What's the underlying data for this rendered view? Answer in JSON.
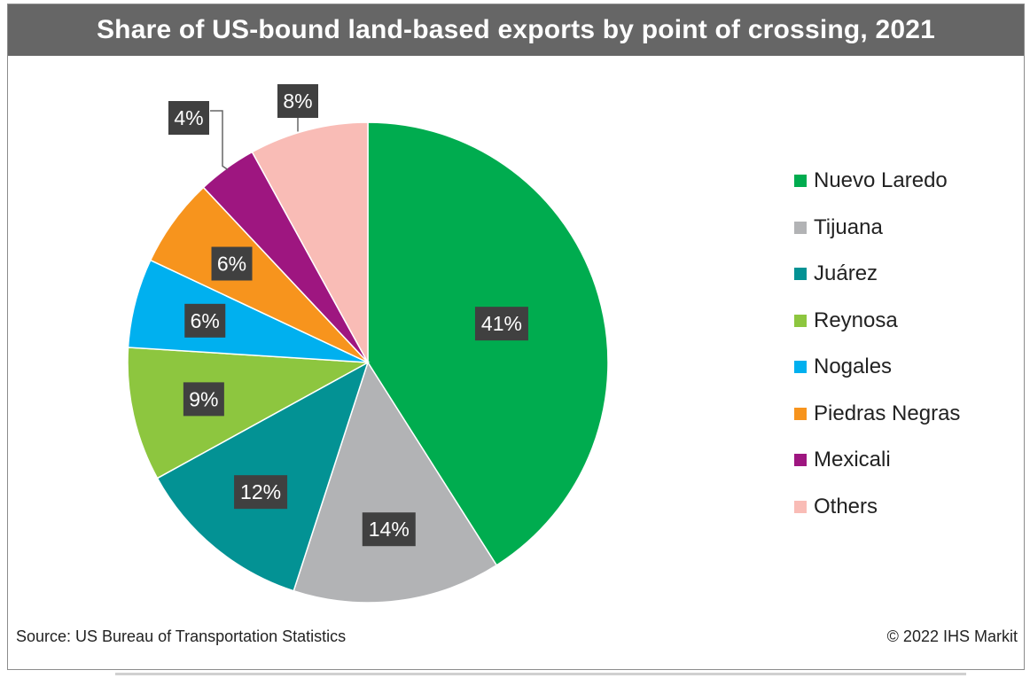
{
  "title": "Share of US-bound land-based exports by point of crossing, 2021",
  "source": "Source: US Bureau of Transportation Statistics",
  "copyright": "© 2022 IHS Markit",
  "chart_data": {
    "type": "pie",
    "title": "Share of US-bound land-based exports by point of crossing, 2021",
    "unit": "%",
    "legend_position": "right",
    "slices": [
      {
        "name": "Nuevo Laredo",
        "value": 41,
        "label": "41%",
        "color": "#00ac4f"
      },
      {
        "name": "Tijuana",
        "value": 14,
        "label": "14%",
        "color": "#b2b3b5"
      },
      {
        "name": "Juárez",
        "value": 12,
        "label": "12%",
        "color": "#039294"
      },
      {
        "name": "Reynosa",
        "value": 9,
        "label": "9%",
        "color": "#8dc63f"
      },
      {
        "name": "Nogales",
        "value": 6,
        "label": "6%",
        "color": "#00b0ef"
      },
      {
        "name": "Piedras Negras",
        "value": 6,
        "label": "6%",
        "color": "#f7941d"
      },
      {
        "name": "Mexicali",
        "value": 4,
        "label": "4%",
        "color": "#9e1680"
      },
      {
        "name": "Others",
        "value": 8,
        "label": "8%",
        "color": "#f9bcb6"
      }
    ]
  }
}
